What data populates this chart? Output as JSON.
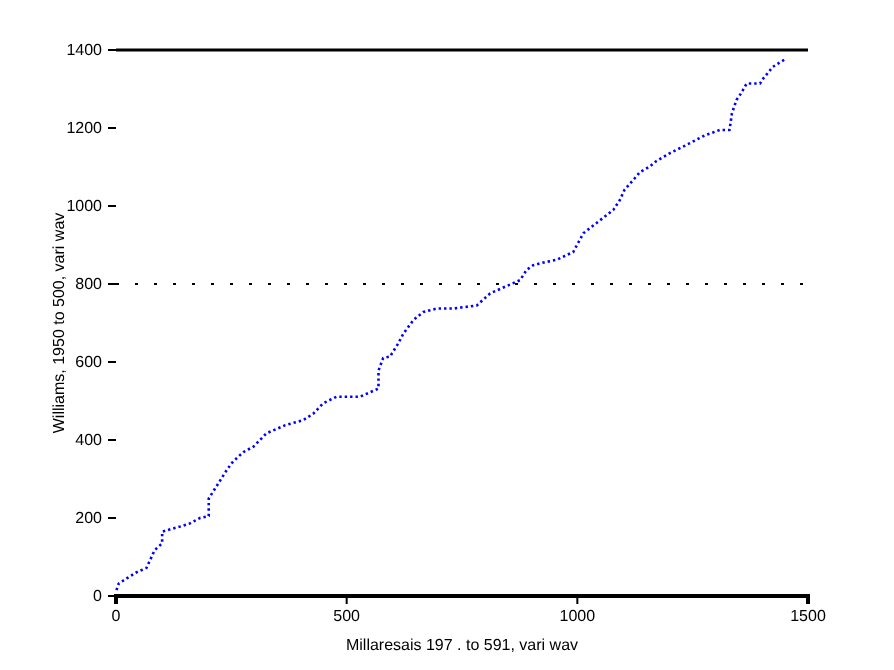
{
  "chart_data": {
    "type": "line",
    "xlabel": "Millaresais 197 . to 591, vari wav",
    "ylabel": "Williams, 1950 to 500, vari wav",
    "xlim": [
      0,
      1500
    ],
    "ylim": [
      0,
      1400
    ],
    "xticks": [
      0,
      500,
      1000,
      1500
    ],
    "yticks": [
      0,
      200,
      400,
      600,
      800,
      1000,
      1200,
      1400
    ],
    "line_style": "dotted",
    "grid": false,
    "ref_lines": [
      {
        "axis": "y",
        "value": 800,
        "line_style": "dotted",
        "color": "#000000"
      },
      {
        "axis": "y",
        "value": 1400,
        "line_style": "solid",
        "color": "#000000"
      }
    ],
    "series": [
      {
        "color": "#0000ff",
        "x": [
          1,
          6,
          23,
          45,
          66,
          84,
          100,
          100,
          139,
          160,
          182,
          201,
          201,
          222,
          240,
          254,
          276,
          298,
          326,
          367,
          406,
          428,
          449,
          478,
          529,
          569,
          569,
          579,
          594,
          612,
          623,
          645,
          666,
          695,
          731,
          782,
          811,
          876,
          890,
          904,
          930,
          955,
          991,
          1013,
          1078,
          1092,
          1102,
          1136,
          1157,
          1171,
          1200,
          1244,
          1276,
          1309,
          1330,
          1335,
          1345,
          1355,
          1367,
          1396,
          1403,
          1424,
          1451
        ],
        "values": [
          15,
          32,
          45,
          61,
          72,
          118,
          135,
          165,
          178,
          186,
          200,
          205,
          250,
          289,
          323,
          345,
          369,
          383,
          417,
          438,
          451,
          468,
          494,
          511,
          511,
          532,
          578,
          610,
          614,
          648,
          673,
          708,
          728,
          737,
          737,
          745,
          776,
          810,
          836,
          848,
          856,
          862,
          882,
          930,
          990,
          1015,
          1041,
          1087,
          1101,
          1115,
          1135,
          1161,
          1181,
          1195,
          1195,
          1237,
          1272,
          1289,
          1314,
          1314,
          1327,
          1357,
          1377
        ]
      }
    ]
  }
}
